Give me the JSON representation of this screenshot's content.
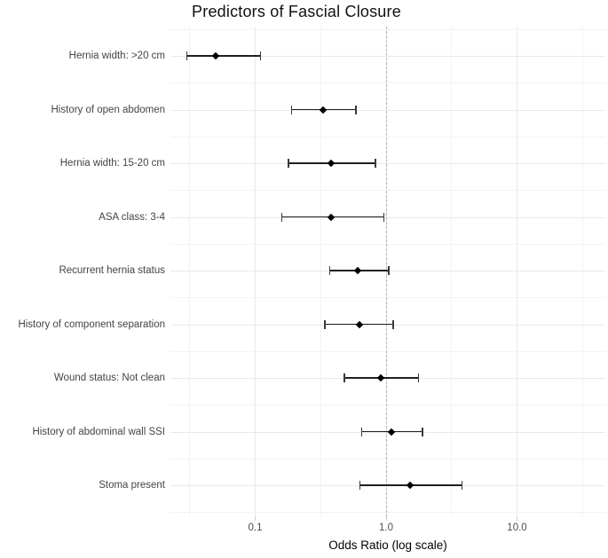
{
  "chart_data": {
    "type": "scatter",
    "subtype": "forest-plot",
    "title": "Predictors of Fascial Closure",
    "xlabel": "Odds Ratio (log scale)",
    "ylabel": "",
    "x_scale": "log10",
    "xlim": [
      0.02,
      47
    ],
    "x_ticks": [
      0.1,
      1.0,
      10.0
    ],
    "x_tick_labels": [
      "0.1",
      "1.0",
      "10.0"
    ],
    "x_minor_gridlines": [
      0.0316,
      0.316,
      3.16,
      31.6
    ],
    "reference_line": 1.0,
    "grid": true,
    "legend": false,
    "rows": [
      {
        "label": "Hernia width: >20 cm",
        "or": 0.05,
        "ci_low": 0.03,
        "ci_high": 0.11
      },
      {
        "label": "History of open abdomen",
        "or": 0.33,
        "ci_low": 0.19,
        "ci_high": 0.59
      },
      {
        "label": "Hernia width: 15-20 cm",
        "or": 0.38,
        "ci_low": 0.18,
        "ci_high": 0.83
      },
      {
        "label": "ASA class: 3-4",
        "or": 0.38,
        "ci_low": 0.16,
        "ci_high": 0.96
      },
      {
        "label": "Recurrent hernia status",
        "or": 0.61,
        "ci_low": 0.37,
        "ci_high": 1.05
      },
      {
        "label": "History of component separation",
        "or": 0.63,
        "ci_low": 0.34,
        "ci_high": 1.13
      },
      {
        "label": "Wound status: Not clean",
        "or": 0.91,
        "ci_low": 0.48,
        "ci_high": 1.77
      },
      {
        "label": "History of abdominal wall SSI",
        "or": 1.1,
        "ci_low": 0.65,
        "ci_high": 1.9
      },
      {
        "label": "Stoma present",
        "or": 1.52,
        "ci_low": 0.63,
        "ci_high": 3.81
      }
    ],
    "colors": {
      "point": "#000000",
      "error_bar": "#1f1f1f",
      "reference_line": "#b5b5b5",
      "gridline_major": "#e9e9e9",
      "gridline_minor": "#f3f3f3",
      "axis_text": "#4d4d4d",
      "label_text": "#444444",
      "title_text": "#111111"
    }
  }
}
